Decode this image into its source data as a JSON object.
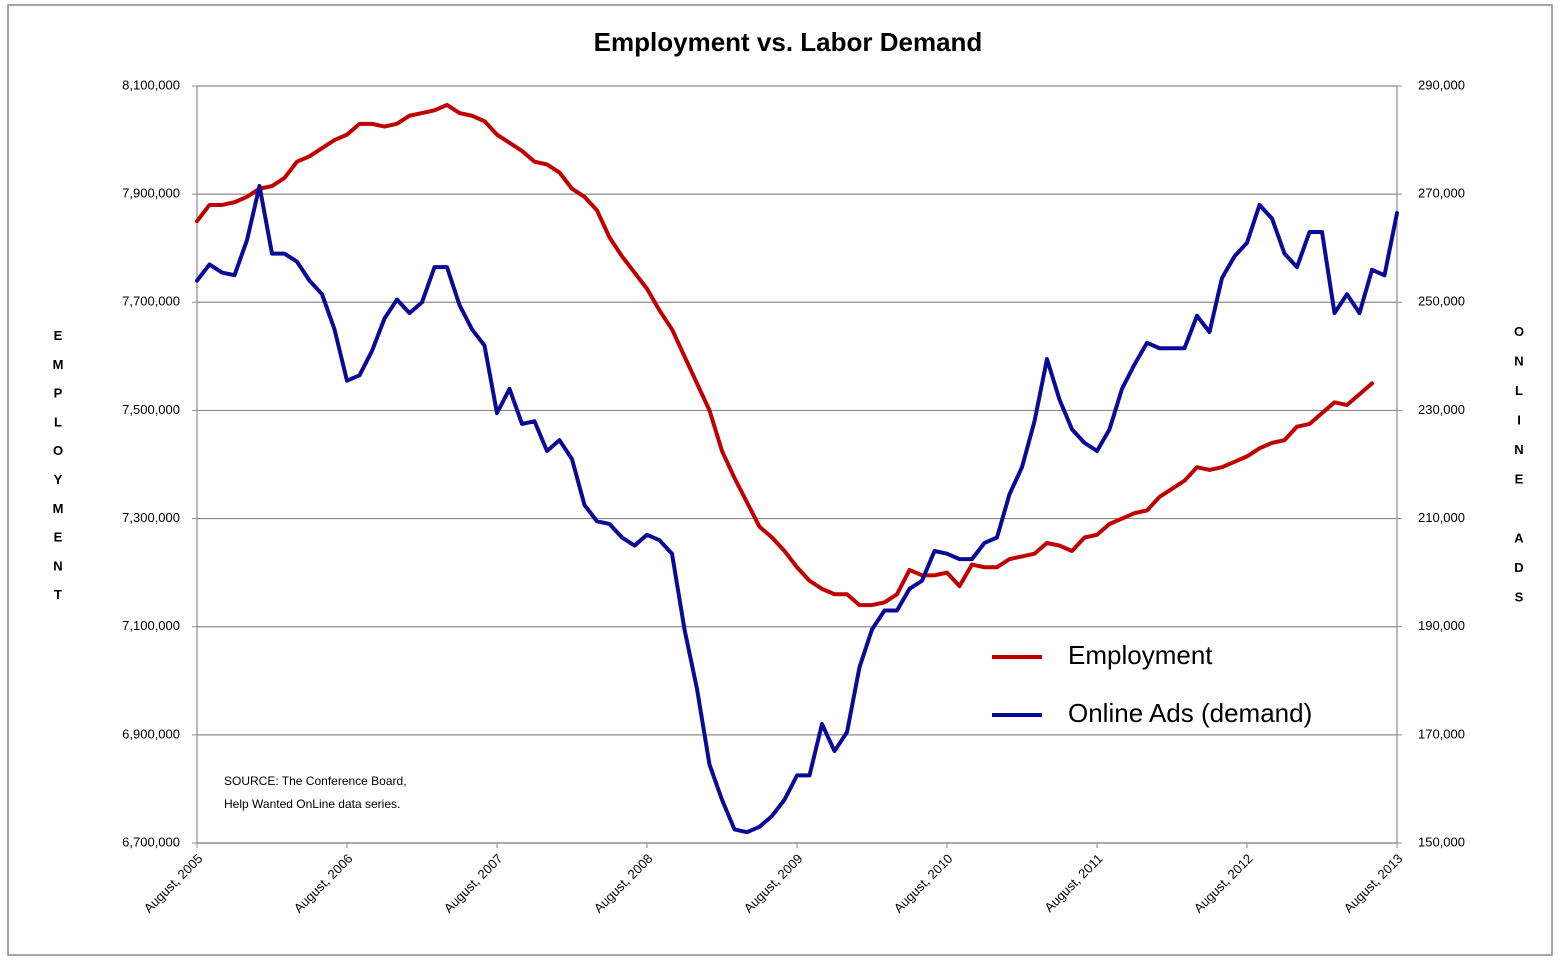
{
  "chart_data": {
    "type": "line",
    "title": "Employment vs. Labor Demand",
    "y_label": "EMPLOYMENT",
    "y2_label": "ONLINE ADS",
    "annotation": [
      "SOURCE: The Conference Board,",
      "Help Wanted OnLine data series."
    ],
    "legend": "lower right",
    "grid": true,
    "categories": [
      "August, 2005",
      null,
      null,
      null,
      null,
      null,
      null,
      null,
      null,
      null,
      null,
      null,
      "August, 2006",
      null,
      null,
      null,
      null,
      null,
      null,
      null,
      null,
      null,
      null,
      null,
      "August, 2007",
      null,
      null,
      null,
      null,
      null,
      null,
      null,
      null,
      null,
      null,
      null,
      "August, 2008",
      null,
      null,
      null,
      null,
      null,
      null,
      null,
      null,
      null,
      null,
      null,
      "August, 2009",
      null,
      null,
      null,
      null,
      null,
      null,
      null,
      null,
      null,
      null,
      null,
      "August, 2010",
      null,
      null,
      null,
      null,
      null,
      null,
      null,
      null,
      null,
      null,
      null,
      "August, 2011",
      null,
      null,
      null,
      null,
      null,
      null,
      null,
      null,
      null,
      null,
      null,
      "August, 2012",
      null,
      null,
      null,
      null,
      null,
      null,
      null,
      null,
      null,
      null,
      null,
      "August, 2013"
    ],
    "ylim": [
      6700000,
      8100000
    ],
    "yticks": [
      {
        "value": 6700000,
        "label": "6,700,000"
      },
      {
        "value": 6900000,
        "label": "6,900,000"
      },
      {
        "value": 7100000,
        "label": "7,100,000"
      },
      {
        "value": 7300000,
        "label": "7,300,000"
      },
      {
        "value": 7500000,
        "label": "7,500,000"
      },
      {
        "value": 7700000,
        "label": "7,700,000"
      },
      {
        "value": 7900000,
        "label": "7,900,000"
      },
      {
        "value": 8100000,
        "label": "8,100,000"
      }
    ],
    "y2lim": [
      150000,
      290000
    ],
    "y2ticks": [
      {
        "value": 150000,
        "label": "150,000"
      },
      {
        "value": 170000,
        "label": "170,000"
      },
      {
        "value": 190000,
        "label": "190,000"
      },
      {
        "value": 210000,
        "label": "210,000"
      },
      {
        "value": 230000,
        "label": "230,000"
      },
      {
        "value": 250000,
        "label": "250,000"
      },
      {
        "value": 270000,
        "label": "270,000"
      },
      {
        "value": 290000,
        "label": "290,000"
      }
    ],
    "series": [
      {
        "name": "Employment",
        "color": "#c00000",
        "axis": "y",
        "values": [
          7850000,
          7880000,
          7880000,
          7885000,
          7895000,
          7910000,
          7915000,
          7930000,
          7960000,
          7970000,
          7985000,
          8000000,
          8010000,
          8030000,
          8030000,
          8025000,
          8030000,
          8045000,
          8050000,
          8055000,
          8065000,
          8050000,
          8045000,
          8035000,
          8010000,
          7995000,
          7980000,
          7960000,
          7955000,
          7940000,
          7910000,
          7895000,
          7870000,
          7820000,
          7785000,
          7755000,
          7725000,
          7685000,
          7650000,
          7600000,
          7550000,
          7500000,
          7425000,
          7375000,
          7330000,
          7285000,
          7265000,
          7240000,
          7210000,
          7185000,
          7170000,
          7160000,
          7160000,
          7140000,
          7140000,
          7145000,
          7160000,
          7205000,
          7195000,
          7195000,
          7200000,
          7175000,
          7215000,
          7210000,
          7210000,
          7225000,
          7230000,
          7235000,
          7255000,
          7250000,
          7240000,
          7265000,
          7270000,
          7290000,
          7300000,
          7310000,
          7315000,
          7340000,
          7355000,
          7370000,
          7395000,
          7390000,
          7395000,
          7405000,
          7415000,
          7430000,
          7440000,
          7445000,
          7470000,
          7475000,
          7495000,
          7515000,
          7510000,
          7530000,
          7550000,
          null,
          null
        ]
      },
      {
        "name": "Online Ads (demand)",
        "color": "#0a0a96",
        "axis": "y2",
        "values": [
          254000,
          257000,
          255500,
          255000,
          261500,
          271500,
          259000,
          259000,
          257500,
          254000,
          251500,
          245000,
          235500,
          236500,
          241000,
          247000,
          250500,
          248000,
          250000,
          256500,
          256500,
          249500,
          245000,
          242000,
          229500,
          234000,
          227500,
          228000,
          222500,
          224500,
          221000,
          212500,
          209500,
          209000,
          206500,
          205000,
          207000,
          206000,
          203500,
          189500,
          178500,
          164500,
          158000,
          152500,
          152000,
          153000,
          155000,
          158000,
          162500,
          162500,
          172000,
          167000,
          170500,
          182500,
          189500,
          193000,
          193000,
          197000,
          198500,
          204000,
          203500,
          202500,
          202500,
          205500,
          206500,
          214500,
          219500,
          228000,
          239500,
          232000,
          226500,
          224000,
          222500,
          226500,
          234000,
          238500,
          242500,
          241500,
          241500,
          241500,
          247500,
          244500,
          254500,
          258500,
          261000,
          268000,
          265500,
          259000,
          256500,
          263000,
          263000,
          248000,
          251500,
          248000,
          256000,
          255000,
          266500
        ]
      }
    ]
  }
}
